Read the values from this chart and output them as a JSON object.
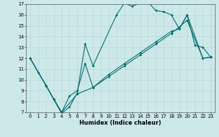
{
  "title": "",
  "xlabel": "Humidex (Indice chaleur)",
  "background_color": "#cde8e8",
  "grid_color": "#b8d8d8",
  "line_color": "#006b6b",
  "xlim": [
    -0.5,
    23.5
  ],
  "ylim": [
    7,
    17
  ],
  "xticks": [
    0,
    1,
    2,
    3,
    4,
    5,
    6,
    7,
    8,
    9,
    10,
    11,
    12,
    13,
    14,
    15,
    16,
    17,
    18,
    19,
    20,
    21,
    22,
    23
  ],
  "yticks": [
    7,
    8,
    9,
    10,
    11,
    12,
    13,
    14,
    15,
    16,
    17
  ],
  "line1_x": [
    0,
    1,
    2,
    3,
    4,
    5,
    6,
    7,
    8,
    11,
    12,
    13,
    14,
    15,
    16,
    17,
    18,
    19,
    20,
    21,
    22,
    23
  ],
  "line1_y": [
    12,
    10.7,
    9.5,
    8.2,
    6.9,
    7.5,
    8.8,
    13.3,
    11.3,
    16.0,
    17.1,
    16.8,
    17.1,
    17.2,
    16.4,
    16.3,
    16.0,
    14.7,
    16.0,
    13.2,
    13.0,
    12.1
  ],
  "line2_x": [
    0,
    2,
    3,
    4,
    5,
    6,
    7,
    8,
    10,
    12,
    14,
    16,
    18,
    19,
    20,
    22,
    23
  ],
  "line2_y": [
    12,
    9.5,
    8.2,
    7.0,
    8.5,
    9.0,
    11.5,
    9.3,
    10.5,
    11.5,
    12.5,
    13.5,
    14.5,
    14.7,
    16.0,
    12.0,
    12.1
  ],
  "line3_x": [
    0,
    2,
    4,
    6,
    8,
    10,
    12,
    14,
    16,
    18,
    20,
    22,
    23
  ],
  "line3_y": [
    12,
    9.5,
    7.0,
    8.7,
    9.3,
    10.3,
    11.3,
    12.3,
    13.3,
    14.3,
    15.5,
    12.0,
    12.1
  ]
}
